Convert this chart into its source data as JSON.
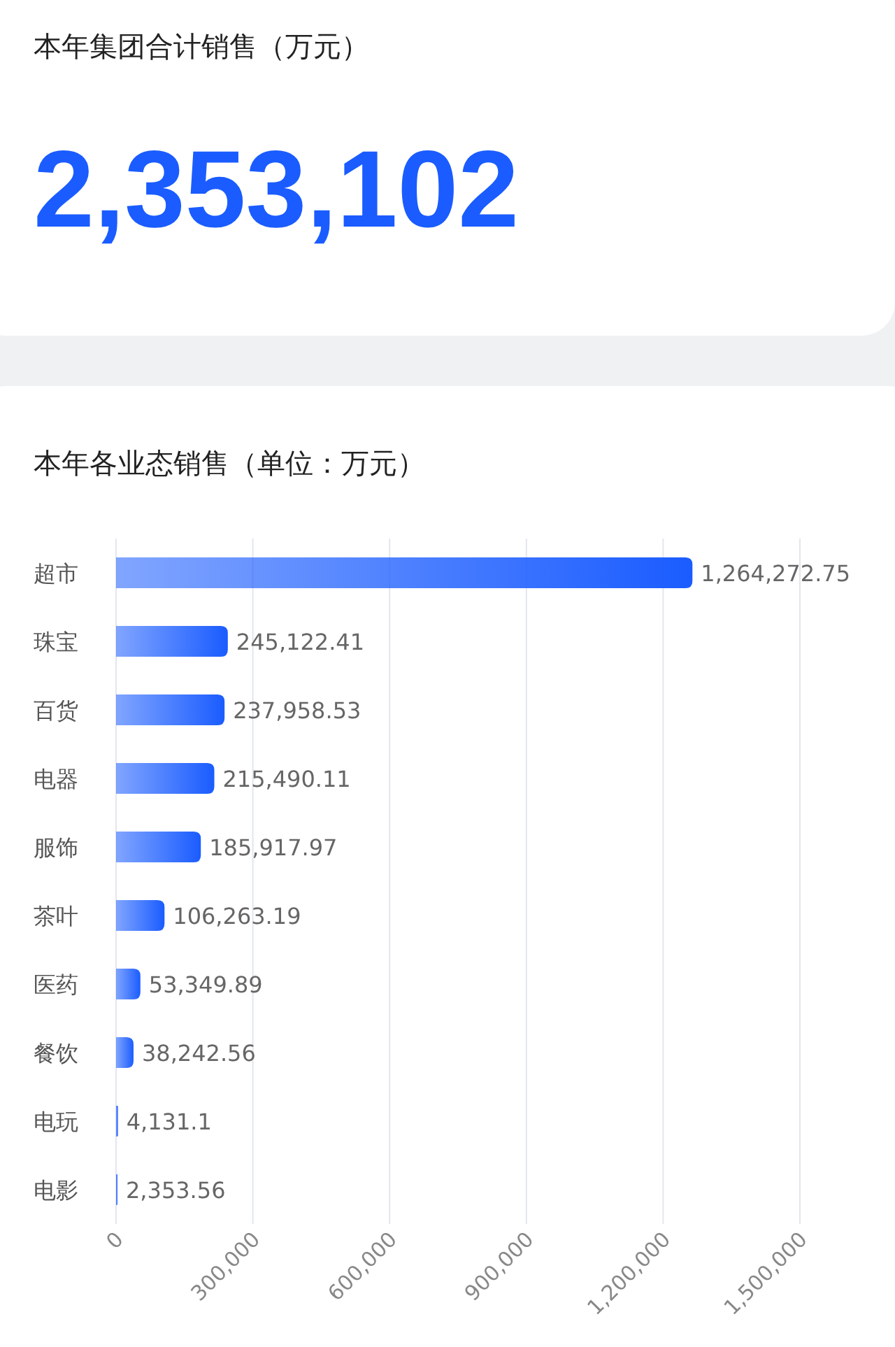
{
  "chart_data": [
    {
      "type": "other",
      "title": "本年集团合计销售（万元）",
      "annotations": [
        "2,353,102"
      ]
    },
    {
      "type": "bar",
      "title": "本年各业态销售（单位：万元）",
      "orientation": "horizontal",
      "categories": [
        "超市",
        "珠宝",
        "百货",
        "电器",
        "服饰",
        "茶叶",
        "医药",
        "餐饮",
        "电玩",
        "电影"
      ],
      "values": [
        1264272.75,
        245122.41,
        237958.53,
        215490.11,
        185917.97,
        106263.19,
        53349.89,
        38242.56,
        4131.1,
        2353.56
      ],
      "value_labels": [
        "1,264,272.75",
        "245,122.41",
        "237,958.53",
        "215,490.11",
        "185,917.97",
        "106,263.19",
        "53,349.89",
        "38,242.56",
        "4,131.1",
        "2,353.56"
      ],
      "color": "#1a5cff",
      "xlim": [
        0,
        1500000
      ],
      "xticks": [
        0,
        {
          "value": 300000,
          "label": "300,000"
        },
        {
          "value": 600000,
          "label": "600,000"
        },
        {
          "value": 900000,
          "label": "900,000"
        },
        {
          "value": 1200000,
          "label": "1,200,000"
        },
        {
          "value": 1500000,
          "label": "1,500,000"
        }
      ],
      "grid": "x"
    }
  ]
}
